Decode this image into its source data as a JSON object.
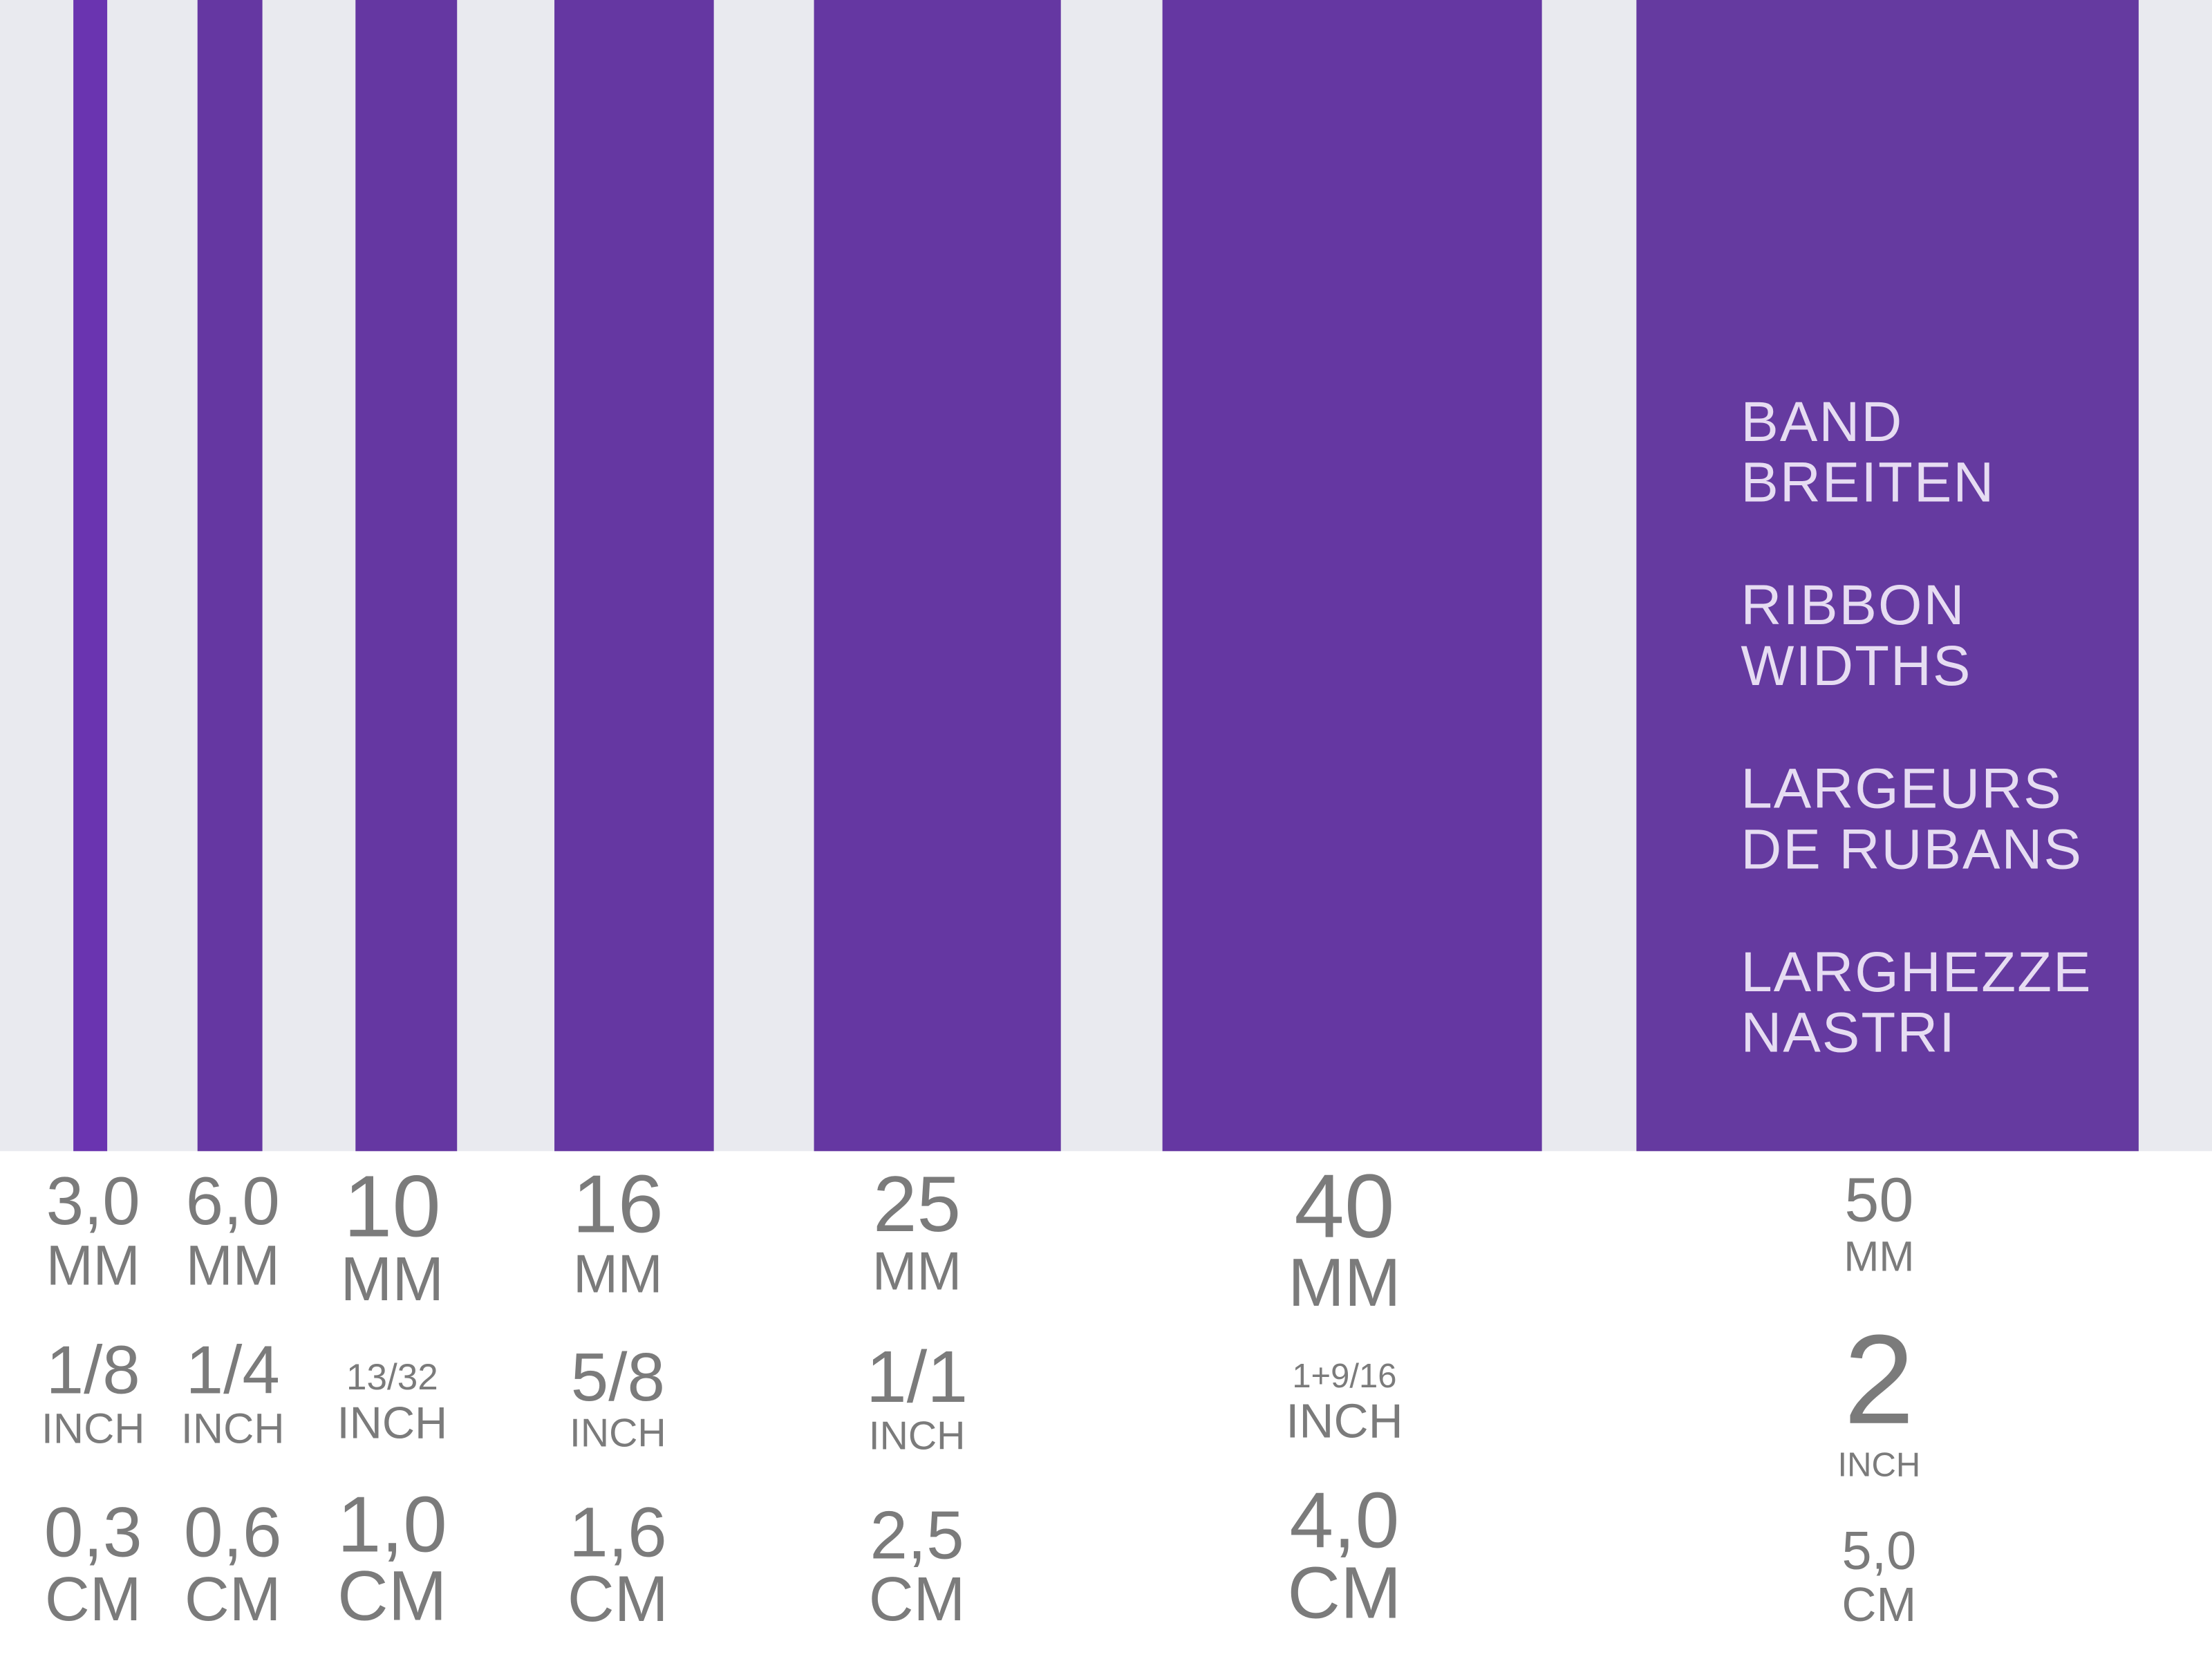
{
  "ribbons": [
    {
      "mm": "3,0",
      "mm_unit": "MM",
      "inch": "1/8",
      "inch_unit": "INCH",
      "cm": "0,3",
      "cm_unit": "CM"
    },
    {
      "mm": "6,0",
      "mm_unit": "MM",
      "inch": "1/4",
      "inch_unit": "INCH",
      "cm": "0,6",
      "cm_unit": "CM"
    },
    {
      "mm": "10",
      "mm_unit": "MM",
      "inch": "13/32",
      "inch_unit": "INCH",
      "cm": "1,0",
      "cm_unit": "CM"
    },
    {
      "mm": "16",
      "mm_unit": "MM",
      "inch": "5/8",
      "inch_unit": "INCH",
      "cm": "1,6",
      "cm_unit": "CM"
    },
    {
      "mm": "25",
      "mm_unit": "MM",
      "inch": "1/1",
      "inch_unit": "INCH",
      "cm": "2,5",
      "cm_unit": "CM"
    },
    {
      "mm": "40",
      "mm_unit": "MM",
      "inch": "1+9/16",
      "inch_unit": "INCH",
      "cm": "4,0",
      "cm_unit": "CM"
    },
    {
      "mm": "50",
      "mm_unit": "MM",
      "inch": "2",
      "inch_unit": "INCH",
      "cm": "5,0",
      "cm_unit": "CM"
    }
  ],
  "titles": [
    [
      "BAND",
      "BREITEN"
    ],
    [
      "RIBBON",
      "WIDTHS"
    ],
    [
      "LARGEURS",
      "DE RUBANS"
    ],
    [
      "LARGHEZZE",
      "NASTRI"
    ]
  ]
}
